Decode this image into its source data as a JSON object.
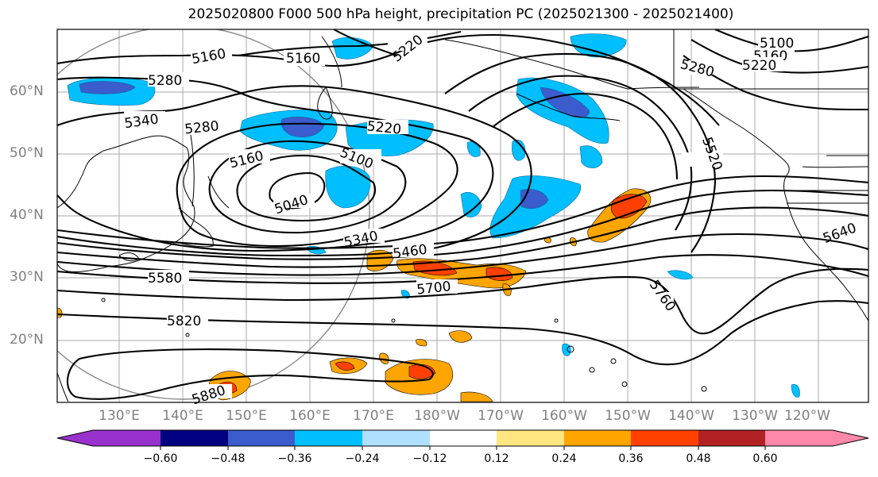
{
  "title": "2025020800 F000 500 hPa height, precipitation PC (2025021300 - 2025021400)",
  "lat_labels": [
    "60°N",
    "50°N",
    "40°N",
    "30°N",
    "20°N"
  ],
  "lon_labels": [
    "130°E",
    "140°E",
    "150°E",
    "160°E",
    "170°E",
    "180°W",
    "170°W",
    "160°W",
    "150°W",
    "140°W",
    "130°W",
    "120°W"
  ],
  "contour_labels": [
    "5160",
    "5160",
    "5220",
    "5100",
    "5160",
    "5280",
    "5220",
    "5280",
    "5340",
    "5280",
    "5220",
    "5160",
    "5100",
    "5040",
    "5340",
    "5460",
    "5520",
    "5580",
    "5700",
    "5760",
    "5640",
    "5820",
    "5880"
  ],
  "colorbar": {
    "ticks": [
      "−0.60",
      "−0.48",
      "−0.36",
      "−0.24",
      "−0.12",
      "0.12",
      "0.24",
      "0.36",
      "0.48",
      "0.60"
    ],
    "colors": [
      "#9932cc",
      "#000080",
      "#3a5ccc",
      "#00bfff",
      "#b0e0ff",
      "#ffffff",
      "#ffe680",
      "#ffa500",
      "#ff4000",
      "#b22222",
      "#ff88aa"
    ]
  }
}
